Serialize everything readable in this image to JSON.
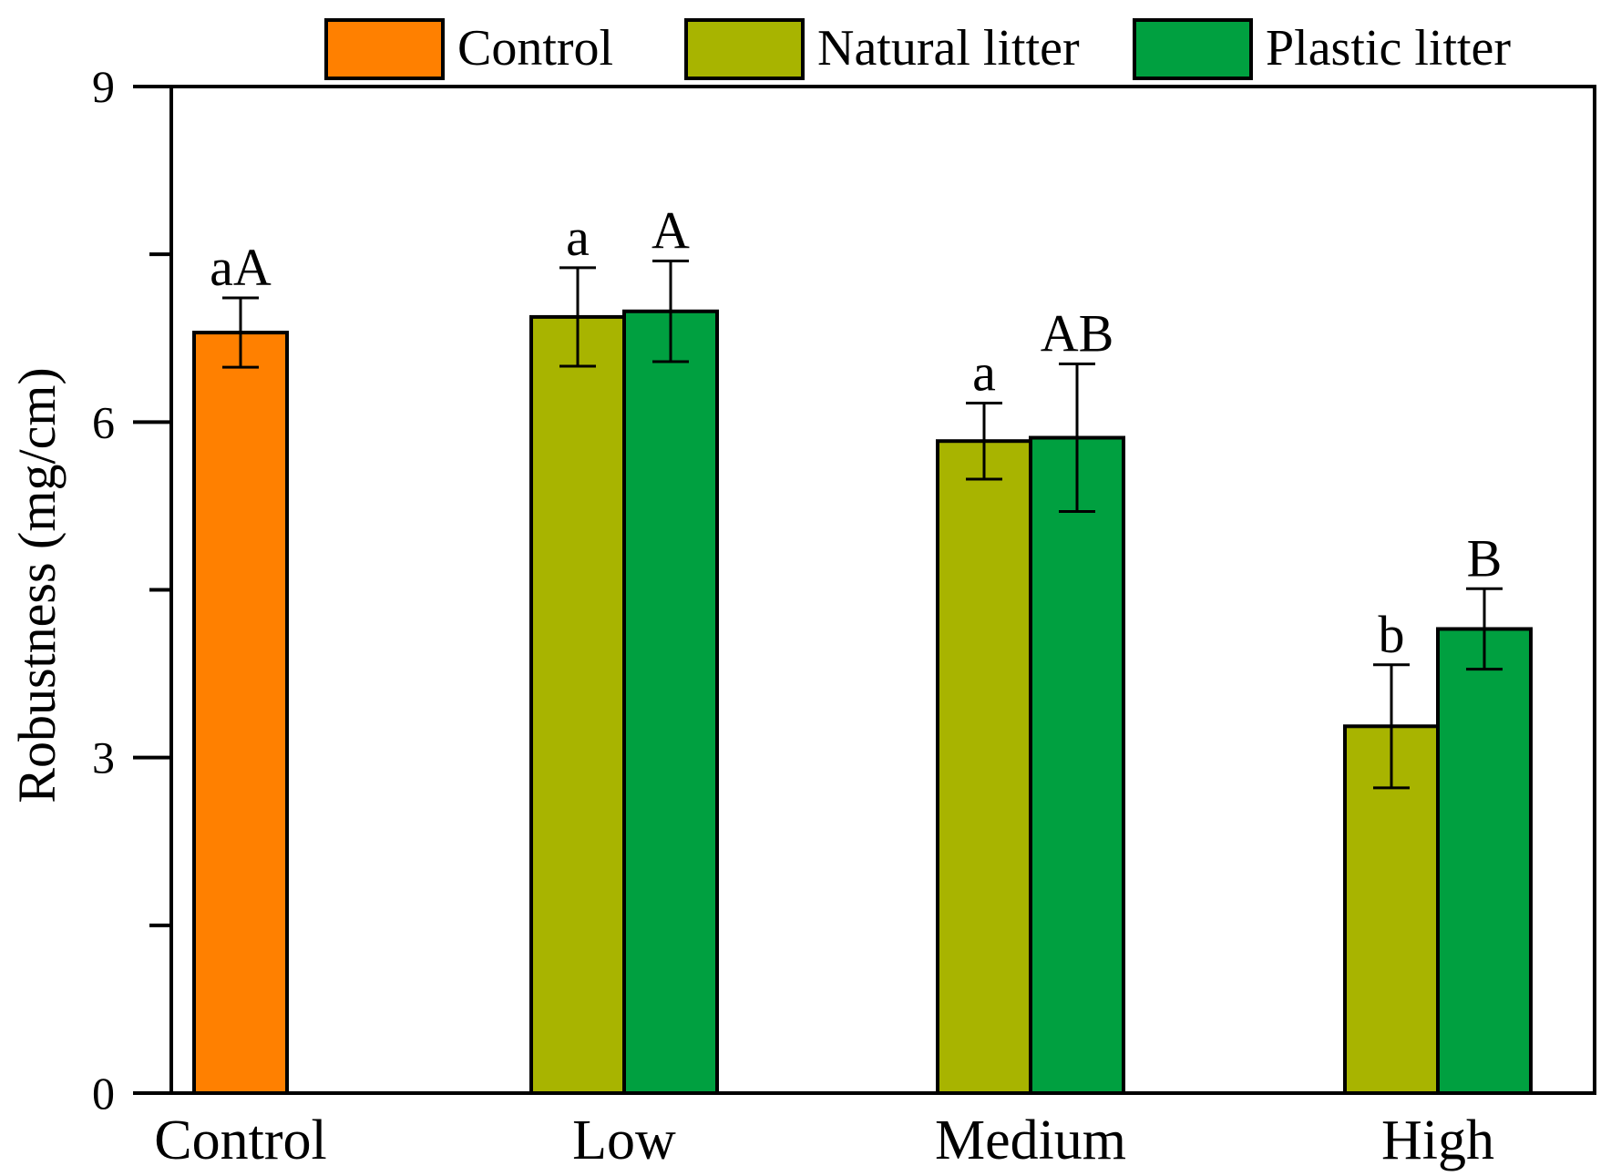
{
  "chart_data": {
    "type": "bar",
    "title": "",
    "xlabel": "",
    "ylabel": "Robustness (mg/cm)",
    "ylim": [
      0,
      9
    ],
    "yticks": [
      0,
      3,
      6,
      9
    ],
    "grid": false,
    "legend_position": "top",
    "categories": [
      "Control",
      "Low",
      "Medium",
      "High"
    ],
    "series": [
      {
        "name": "Control",
        "color": "#ff8000",
        "values": [
          6.8,
          null,
          null,
          null
        ],
        "errors": [
          0.31,
          null,
          null,
          null
        ],
        "labels": [
          "aA",
          null,
          null,
          null
        ]
      },
      {
        "name": "Natural litter",
        "color": "#a8b400",
        "values": [
          null,
          6.94,
          5.83,
          3.28
        ],
        "errors": [
          null,
          0.44,
          0.34,
          0.55
        ],
        "labels": [
          null,
          "a",
          "a",
          "b"
        ]
      },
      {
        "name": "Plastic litter",
        "color": "#00a040",
        "values": [
          null,
          6.99,
          5.86,
          4.15
        ],
        "errors": [
          null,
          0.45,
          0.66,
          0.36
        ],
        "labels": [
          null,
          "A",
          "AB",
          "B"
        ]
      }
    ]
  }
}
